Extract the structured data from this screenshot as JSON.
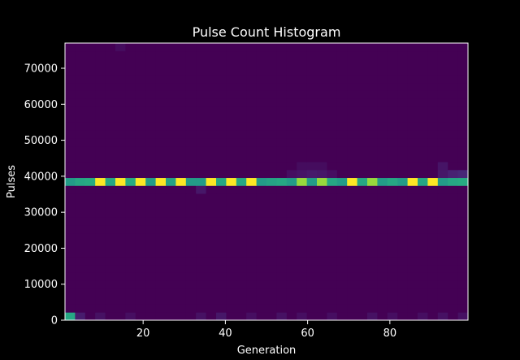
{
  "chart_data": {
    "type": "heatmap",
    "title": "Pulse Count Histogram",
    "xlabel": "Generation",
    "ylabel": "Pulses",
    "xlim": [
      1,
      99
    ],
    "ylim": [
      0,
      77000
    ],
    "x_ticks": [
      20,
      40,
      60,
      80
    ],
    "y_ticks": [
      0,
      10000,
      20000,
      30000,
      40000,
      50000,
      60000,
      70000
    ],
    "x_bins": 40,
    "y_bins": 35,
    "colormap": "viridis",
    "background_color": "#000000",
    "text_color": "#ffffff",
    "default_level": 0,
    "levels_note_scale": [
      0,
      1
    ],
    "band_row": 17,
    "band_levels": [
      0.55,
      0.6,
      0.62,
      1.0,
      0.6,
      1.0,
      0.62,
      1.0,
      0.55,
      1.0,
      0.58,
      1.0,
      0.55,
      0.55,
      1.0,
      0.6,
      1.0,
      0.6,
      1.0,
      0.55,
      0.58,
      0.6,
      0.55,
      0.85,
      0.55,
      0.85,
      0.6,
      0.55,
      1.0,
      0.6,
      0.85,
      0.55,
      0.6,
      0.55,
      1.0,
      0.6,
      1.0,
      0.55,
      0.6,
      0.62
    ],
    "hot_cells": [
      {
        "col": 0,
        "row": 0,
        "level": 0.6
      },
      {
        "col": 1,
        "row": 0,
        "level": 0.1
      },
      {
        "col": 3,
        "row": 0,
        "level": 0.06
      },
      {
        "col": 6,
        "row": 0,
        "level": 0.05
      },
      {
        "col": 13,
        "row": 0,
        "level": 0.06
      },
      {
        "col": 15,
        "row": 0,
        "level": 0.08
      },
      {
        "col": 18,
        "row": 0,
        "level": 0.05
      },
      {
        "col": 21,
        "row": 0,
        "level": 0.06
      },
      {
        "col": 23,
        "row": 0,
        "level": 0.05
      },
      {
        "col": 26,
        "row": 0,
        "level": 0.05
      },
      {
        "col": 30,
        "row": 0,
        "level": 0.06
      },
      {
        "col": 32,
        "row": 0,
        "level": 0.05
      },
      {
        "col": 35,
        "row": 0,
        "level": 0.05
      },
      {
        "col": 37,
        "row": 0,
        "level": 0.06
      },
      {
        "col": 39,
        "row": 0,
        "level": 0.06
      },
      {
        "col": 13,
        "row": 16,
        "level": 0.08
      },
      {
        "col": 22,
        "row": 18,
        "level": 0.05
      },
      {
        "col": 23,
        "row": 18,
        "level": 0.07
      },
      {
        "col": 24,
        "row": 18,
        "level": 0.09
      },
      {
        "col": 25,
        "row": 18,
        "level": 0.08
      },
      {
        "col": 26,
        "row": 18,
        "level": 0.05
      },
      {
        "col": 37,
        "row": 18,
        "level": 0.08
      },
      {
        "col": 38,
        "row": 18,
        "level": 0.12
      },
      {
        "col": 39,
        "row": 18,
        "level": 0.14
      },
      {
        "col": 23,
        "row": 19,
        "level": 0.04
      },
      {
        "col": 24,
        "row": 19,
        "level": 0.04
      },
      {
        "col": 25,
        "row": 19,
        "level": 0.04
      },
      {
        "col": 37,
        "row": 19,
        "level": 0.07
      },
      {
        "col": 5,
        "row": 34,
        "level": 0.04
      }
    ]
  }
}
